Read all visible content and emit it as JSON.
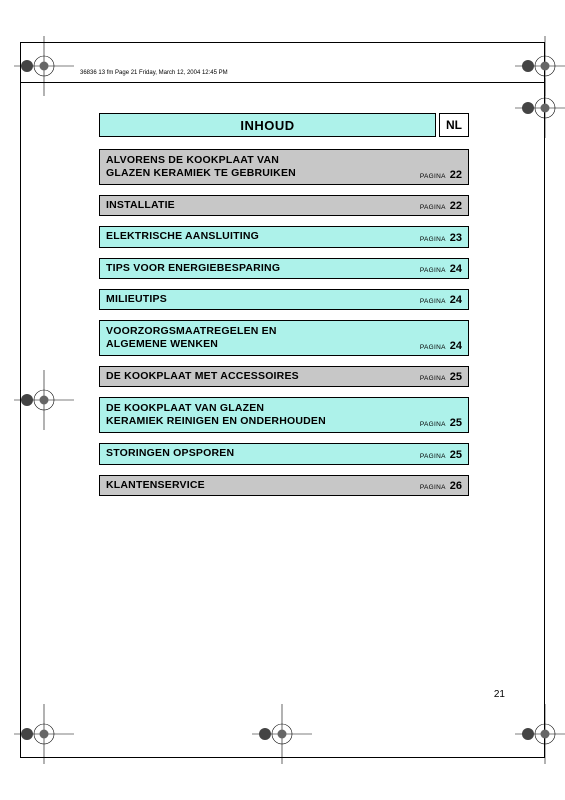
{
  "header_text": "36836 13 fm  Page 21  Friday, March 12, 2004  12:45 PM",
  "title": "INHOUD",
  "lang": "NL",
  "page_label": "PAGINA",
  "page_number": "21",
  "colors": {
    "teal": "#adf2ea",
    "gray": "#c7c7c7",
    "border": "#000000",
    "background": "#ffffff"
  },
  "entries": [
    {
      "label": "ALVORENS DE KOOKPLAAT VAN\nGLAZEN KERAMIEK TE GEBRUIKEN",
      "page": "22",
      "style": "gray",
      "multiline": true
    },
    {
      "label": "INSTALLATIE",
      "page": "22",
      "style": "gray",
      "multiline": false
    },
    {
      "label": "ELEKTRISCHE AANSLUITING",
      "page": "23",
      "style": "teal",
      "multiline": false
    },
    {
      "label": "TIPS VOOR ENERGIEBESPARING",
      "page": "24",
      "style": "teal",
      "multiline": false
    },
    {
      "label": "MILIEUTIPS",
      "page": "24",
      "style": "teal",
      "multiline": false
    },
    {
      "label": "VOORZORGSMAATREGELEN EN\nALGEMENE WENKEN",
      "page": "24",
      "style": "teal",
      "multiline": true
    },
    {
      "label": "DE KOOKPLAAT MET ACCESSOIRES",
      "page": "25",
      "style": "gray",
      "multiline": false
    },
    {
      "label": "DE KOOKPLAAT VAN GLAZEN\nKERAMIEK REINIGEN EN ONDERHOUDEN",
      "page": "25",
      "style": "teal",
      "multiline": true
    },
    {
      "label": "STORINGEN OPSPOREN",
      "page": "25",
      "style": "teal",
      "multiline": false
    },
    {
      "label": "KLANTENSERVICE",
      "page": "26",
      "style": "gray",
      "multiline": false
    }
  ]
}
